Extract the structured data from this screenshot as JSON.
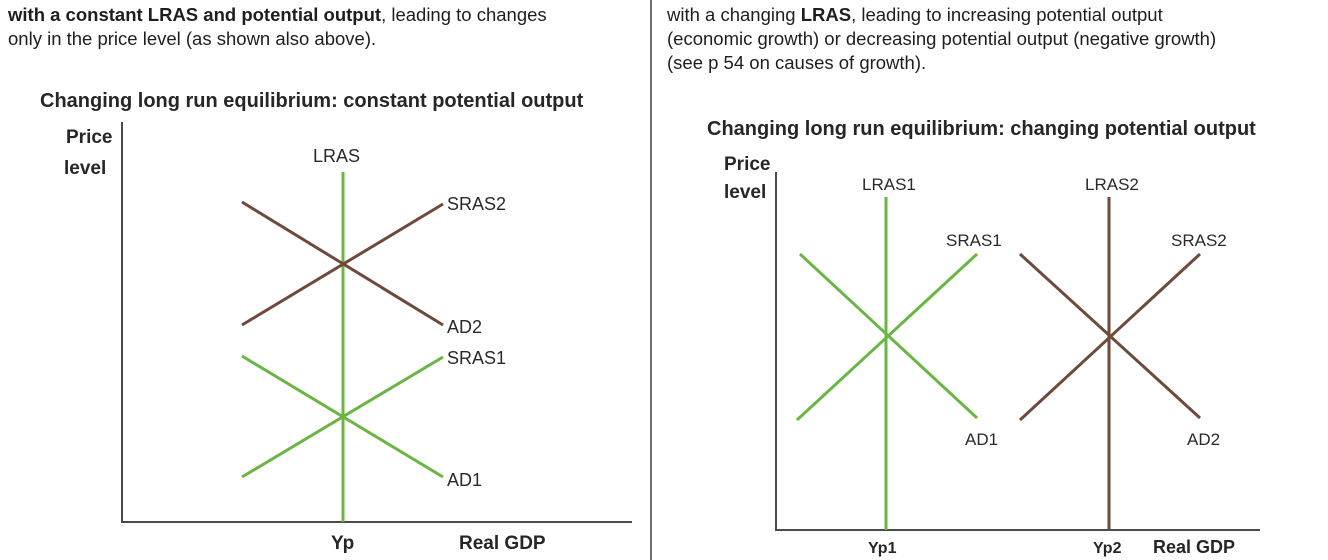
{
  "left_text": {
    "bold1": "with a constant LRAS and potential output",
    "rest1": ", leading to changes",
    "line2": "only in the price level (as shown also above)."
  },
  "right_text": {
    "pre1": "with a changing ",
    "bold1": "LRAS",
    "rest1": ", leading to increasing potential output",
    "line2": "(economic growth) or decreasing potential output (negative growth)",
    "line3": "(see p 54 on causes of growth)."
  },
  "colors": {
    "green": "#6bb545",
    "brown": "#6e4a3a",
    "axis": "#4a4a4a"
  },
  "diagram_left": {
    "title": "Changing long run equilibrium: constant potential output",
    "y_axis_line1": "Price",
    "y_axis_line2": "level",
    "x_axis": "Real GDP",
    "x_tick": "Yp",
    "lras_label": "LRAS",
    "sras2_label": "SRAS2",
    "ad2_label": "AD2",
    "sras1_label": "SRAS1",
    "ad1_label": "AD1"
  },
  "diagram_right": {
    "title": "Changing long run equilibrium: changing potential output",
    "y_axis_line1": "Price",
    "y_axis_line2": "level",
    "x_axis": "Real GDP",
    "x_tick1": "Yp1",
    "x_tick2": "Yp2",
    "lras1_label": "LRAS1",
    "lras2_label": "LRAS2",
    "sras1_label": "SRAS1",
    "sras2_label": "SRAS2",
    "ad1_label": "AD1",
    "ad2_label": "AD2"
  }
}
